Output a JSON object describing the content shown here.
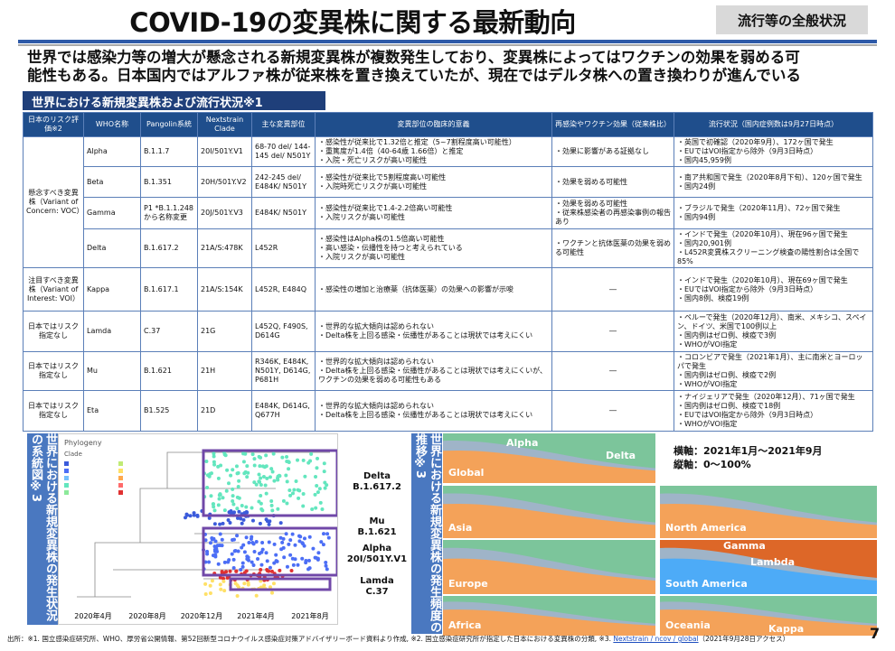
{
  "header": {
    "title": "COVID-19の変異株に関する最新動向",
    "tag": "流行等の全般状況"
  },
  "intro": [
    "世界では感染力等の増大が懸念される新規変異株が複数発生しており、変異株によってはワクチンの効果を弱める可",
    "能性もある。日本国内ではアルファ株が従来株を置き換えていたが、現在ではデルタ株への置き換わりが進んでいる"
  ],
  "section": "世界における新規変異株および流行状況※1",
  "table": {
    "headers": [
      "日本のリスク評価※2",
      "WHO名称",
      "Pangolin系統",
      "Nextstrain Clade",
      "主な変異部位",
      "変異部位の臨床的意義",
      "再感染やワクチン効果（従来株比）",
      "流行状況（国内症例数は9月27日時点）"
    ],
    "groups": [
      {
        "risk": "懸念すべき変異株（Variant of Concern: VOC）",
        "rows": [
          {
            "who": "Alpha",
            "pango": "B.1.1.7",
            "clade": "20I/501Y.V1",
            "mut": "68-70 del/ 144-145 del/ N501Y",
            "sig": [
              "・感染性が従来比で1.32倍と推定（5~7割程度高い可能性）",
              "・重篤度が1.4倍（40-64歳 1.66倍）と推定",
              "・入院・死亡リスクが高い可能性"
            ],
            "vac": [
              "・効果に影響がある証拠なし"
            ],
            "status": [
              "・英国で初確認（2020年9月）、172ヶ国で発生",
              "・EUではVOI指定から除外（9月3日時点）",
              "・国内45,959例"
            ]
          },
          {
            "who": "Beta",
            "pango": "B.1.351",
            "clade": "20H/501Y.V2",
            "mut": "242-245 del/ E484K/ N501Y",
            "sig": [
              "・感染性が従来比で5割程度高い可能性",
              "・入院時死亡リスクが高い可能性"
            ],
            "vac": [
              "・効果を弱める可能性"
            ],
            "status": [
              "・南ア共和国で発生（2020年8月下旬）、120ヶ国で発生",
              "・国内24例"
            ]
          },
          {
            "who": "Gamma",
            "pango": "P1 *B.1.1.248から名称変更",
            "clade": "20J/501Y.V3",
            "mut": "E484K/ N501Y",
            "sig": [
              "・感染性が従来比で1.4-2.2倍高い可能性",
              "・入院リスクが高い可能性"
            ],
            "vac": [
              "・効果を弱める可能性",
              "・従来株感染者の再感染事例の報告あり"
            ],
            "status": [
              "・ブラジルで発生（2020年11月）、72ヶ国で発生",
              "・国内94例"
            ]
          },
          {
            "who": "Delta",
            "pango": "B.1.617.2",
            "clade": "21A/S:478K",
            "mut": "L452R",
            "sig": [
              "・感染性はAlpha株の1.5倍高い可能性",
              "・高い感染・伝播性を持つと考えられている",
              "・入院リスクが高い可能性"
            ],
            "vac": [
              "・ワクチンと抗体医薬の効果を弱める可能性"
            ],
            "status": [
              "・インドで発生（2020年10月）、現在96ヶ国で発生",
              "・国内20,901例",
              "・L452R変異株スクリーニング検査の陽性割合は全国で85%"
            ]
          }
        ]
      },
      {
        "risk": "注目すべき変異株（Variant of Interest: VOI）",
        "rows": [
          {
            "who": "Kappa",
            "pango": "B.1.617.1",
            "clade": "21A/S:154K",
            "mut": "L452R, E484Q",
            "sig": [
              "・感染性の増加と治療薬（抗体医薬）の効果への影響が示唆"
            ],
            "vac": [
              "―"
            ],
            "status": [
              "・インドで発生（2020年10月）、現在69ヶ国で発生",
              "・EUではVOI指定から除外（9月3日時点）",
              "・国内8例、検疫19例"
            ]
          }
        ]
      },
      {
        "risk": "日本ではリスク指定なし",
        "rows": [
          {
            "who": "Lamda",
            "pango": "C.37",
            "clade": "21G",
            "mut": "L452Q, F490S, D614G",
            "sig": [
              "・世界的な拡大傾向は認められない",
              "・Delta株を上回る感染・伝播性があることは現状では考えにくい"
            ],
            "vac": [
              "―"
            ],
            "status": [
              "・ペルーで発生（2020年12月）、南米、メキシコ、スペイン、ドイツ、米国で100例以上",
              "・国内例はゼロ例、検疫で3例",
              "・WHOがVOI指定"
            ]
          }
        ]
      },
      {
        "risk": "日本ではリスク指定なし",
        "rows": [
          {
            "who": "Mu",
            "pango": "B.1.621",
            "clade": "21H",
            "mut": "R346K, E484K, N501Y, D614G, P681H",
            "sig": [
              "・世界的な拡大傾向は認められない",
              "・Delta株を上回る感染・伝播性があることは現状では考えにくいが、ワクチンの効果を弱める可能性もある"
            ],
            "vac": [
              "―"
            ],
            "status": [
              "・コロンビアで発生（2021年1月）、主に南米とヨーロッパで発生",
              "・国内例はゼロ例、検疫で2例",
              "・WHOがVOI指定"
            ]
          }
        ]
      },
      {
        "risk": "日本ではリスク指定なし",
        "rows": [
          {
            "who": "Eta",
            "pango": "B1.525",
            "clade": "21D",
            "mut": "E484K, D614G, Q677H",
            "sig": [
              "・世界的な拡大傾向は認められない",
              "・Delta株を上回る感染・伝播性があることは現状では考えにくい"
            ],
            "vac": [
              "―"
            ],
            "status": [
              "・ナイジェリアで発生（2020年12月）、71ヶ国で発生",
              "・国内例はゼロ例、検疫で18例",
              "・EUではVOI指定から除外（9月3日時点）",
              "・WHOがVOI指定"
            ]
          }
        ]
      }
    ]
  },
  "phylogeny": {
    "side": "世界における新規変異株の発生状況の系統図※3",
    "title": "Phylogeny",
    "clade": "Clade",
    "dates": [
      "2020年4月",
      "2020年8月",
      "2020年12月",
      "2021年4月",
      "2021年8月"
    ],
    "labels": [
      [
        "Delta",
        "B.1.617.2"
      ],
      [
        "Mu",
        "B.1.621"
      ],
      [
        "Alpha",
        "20I/501Y.V1"
      ],
      [
        "Lamda",
        "C.37"
      ]
    ]
  },
  "frequency": {
    "side": "世界における新規変異株の発生頻度の推移※3",
    "axis": [
      "横軸：2021年1月～2021年9月",
      "縦軸：0～100%"
    ],
    "panels": [
      {
        "region": "Global",
        "labels": [
          "Alpha",
          "Delta"
        ]
      },
      {
        "region": "Asia",
        "labels": []
      },
      {
        "region": "North America",
        "labels": []
      },
      {
        "region": "Europe",
        "labels": []
      },
      {
        "region": "South America",
        "labels": [
          "Gamma",
          "Lambda"
        ]
      },
      {
        "region": "Africa",
        "labels": []
      },
      {
        "region": "Oceania",
        "labels": [
          "Kappa"
        ]
      }
    ]
  },
  "footer": [
    "出所：※1. 国立感染症研究所、WHO、厚労省公開情報、第52回新型コロナウイルス感染症対策アドバイザリーボード資料より作成, ※2. 国立感染症研究所が指定した日本における変異株の分類, ※3. ",
    "Nextstrain / ncov / global",
    "（2021年9月28日アクセス）"
  ],
  "page": "7"
}
